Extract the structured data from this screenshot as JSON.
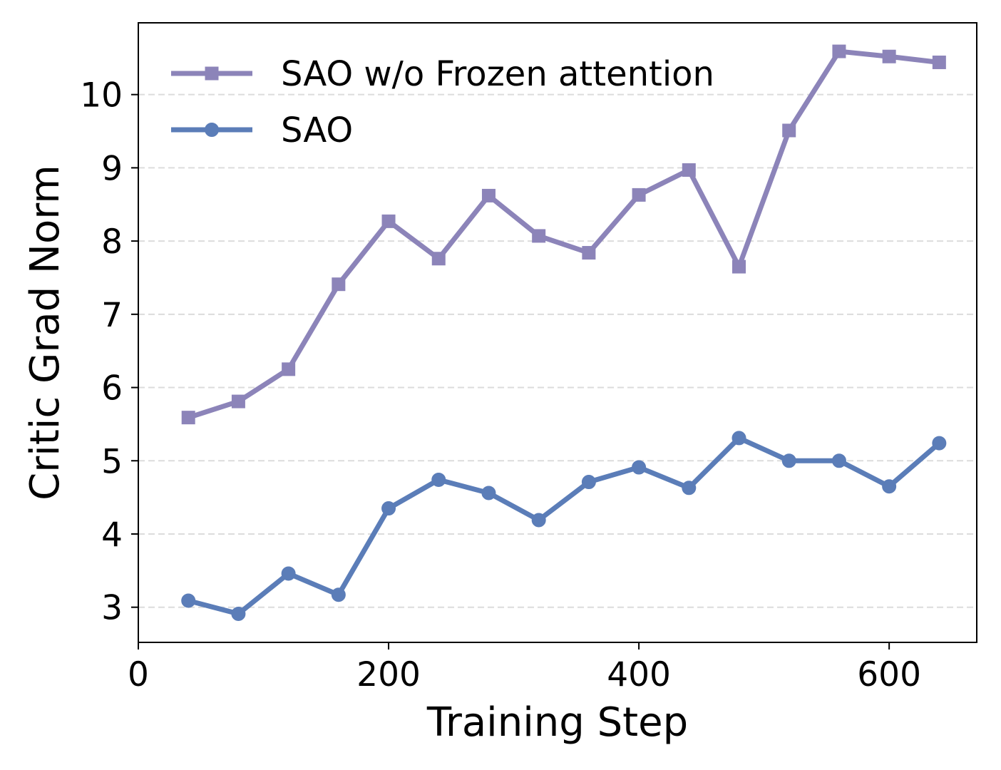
{
  "chart_data": {
    "type": "line",
    "title": "",
    "xlabel": "Training Step",
    "ylabel": "Critic Grad Norm",
    "xlim": [
      0,
      670
    ],
    "ylim": [
      2.52,
      10.98
    ],
    "xticks": [
      0,
      200,
      400,
      600
    ],
    "yticks": [
      3,
      4,
      5,
      6,
      7,
      8,
      9,
      10
    ],
    "grid": "horizontal-dashed",
    "legend_position": "top-left",
    "x": [
      40,
      80,
      120,
      160,
      200,
      240,
      280,
      320,
      360,
      400,
      440,
      480,
      520,
      560,
      600,
      640
    ],
    "series": [
      {
        "name": "SAO w/o Frozen attention",
        "color": "#8c84b9",
        "marker": "square",
        "values": [
          5.59,
          5.81,
          6.25,
          7.41,
          8.27,
          7.76,
          8.62,
          8.07,
          7.84,
          8.63,
          8.97,
          7.65,
          9.51,
          10.59,
          10.52,
          10.44
        ]
      },
      {
        "name": "SAO",
        "color": "#5b7db8",
        "marker": "circle",
        "values": [
          3.09,
          2.91,
          3.46,
          3.17,
          4.35,
          4.74,
          4.56,
          4.19,
          4.71,
          4.91,
          4.63,
          5.31,
          5.0,
          5.0,
          4.65,
          5.24
        ]
      }
    ]
  }
}
